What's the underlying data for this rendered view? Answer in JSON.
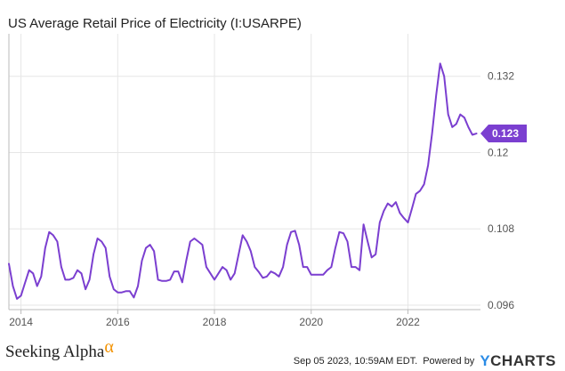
{
  "header": {
    "title": "US Average Retail Price of Electricity (I:USARPE)"
  },
  "footer": {
    "brand": "Seeking Alpha",
    "brand_mark": "α",
    "timestamp": "Sep 05 2023, 10:59AM EDT.",
    "powered_by": "Powered by",
    "provider_y": "Y",
    "provider_rest": "CHARTS"
  },
  "colors": {
    "line": "#7b3fd0",
    "grid": "#e6e6e6",
    "axis": "#bbbbbb"
  },
  "chart_data": {
    "type": "line",
    "title": "US Average Retail Price of Electricity (I:USARPE)",
    "xlabel": "",
    "ylabel": "",
    "xlim": [
      2013.75,
      2023.5
    ],
    "ylim": [
      0.0953,
      0.1384
    ],
    "x_ticks": [
      2014,
      2016,
      2018,
      2020,
      2022
    ],
    "x_tick_labels": [
      "2014",
      "2016",
      "2018",
      "2020",
      "2022"
    ],
    "y_ticks": [
      0.096,
      0.108,
      0.12,
      0.132
    ],
    "y_tick_labels": [
      "0.096",
      "0.108",
      "0.12",
      "0.132"
    ],
    "last_value_label": "0.123",
    "series": [
      {
        "name": "USARPE",
        "x": [
          2013.75,
          2013.833,
          2013.917,
          2014.0,
          2014.083,
          2014.167,
          2014.25,
          2014.333,
          2014.417,
          2014.5,
          2014.583,
          2014.667,
          2014.75,
          2014.833,
          2014.917,
          2015.0,
          2015.083,
          2015.167,
          2015.25,
          2015.333,
          2015.417,
          2015.5,
          2015.583,
          2015.667,
          2015.75,
          2015.833,
          2015.917,
          2016.0,
          2016.083,
          2016.167,
          2016.25,
          2016.333,
          2016.417,
          2016.5,
          2016.583,
          2016.667,
          2016.75,
          2016.833,
          2016.917,
          2017.0,
          2017.083,
          2017.167,
          2017.25,
          2017.333,
          2017.417,
          2017.5,
          2017.583,
          2017.667,
          2017.75,
          2017.833,
          2017.917,
          2018.0,
          2018.083,
          2018.167,
          2018.25,
          2018.333,
          2018.417,
          2018.5,
          2018.583,
          2018.667,
          2018.75,
          2018.833,
          2018.917,
          2019.0,
          2019.083,
          2019.167,
          2019.25,
          2019.333,
          2019.417,
          2019.5,
          2019.583,
          2019.667,
          2019.75,
          2019.833,
          2019.917,
          2020.0,
          2020.083,
          2020.167,
          2020.25,
          2020.333,
          2020.417,
          2020.5,
          2020.583,
          2020.667,
          2020.75,
          2020.833,
          2020.917,
          2021.0,
          2021.083,
          2021.167,
          2021.25,
          2021.333,
          2021.417,
          2021.5,
          2021.583,
          2021.667,
          2021.75,
          2021.833,
          2021.917,
          2022.0,
          2022.083,
          2022.167,
          2022.25,
          2022.333,
          2022.417,
          2022.5,
          2022.583,
          2022.667,
          2022.75,
          2022.833,
          2022.917,
          2023.0,
          2023.083,
          2023.167,
          2023.25,
          2023.333,
          2023.417
        ],
        "values": [
          0.1025,
          0.099,
          0.097,
          0.0975,
          0.0995,
          0.1015,
          0.101,
          0.099,
          0.1005,
          0.105,
          0.1075,
          0.107,
          0.106,
          0.102,
          0.1,
          0.1,
          0.1003,
          0.1015,
          0.101,
          0.0985,
          0.1,
          0.104,
          0.1065,
          0.106,
          0.105,
          0.1005,
          0.0985,
          0.098,
          0.098,
          0.0982,
          0.0982,
          0.0972,
          0.099,
          0.103,
          0.105,
          0.1055,
          0.1045,
          0.1,
          0.0998,
          0.0998,
          0.1,
          0.1013,
          0.1013,
          0.0996,
          0.103,
          0.106,
          0.1065,
          0.106,
          0.1055,
          0.102,
          0.101,
          0.1,
          0.101,
          0.102,
          0.1015,
          0.1,
          0.101,
          0.104,
          0.107,
          0.106,
          0.1045,
          0.102,
          0.1012,
          0.1003,
          0.1005,
          0.1013,
          0.101,
          0.1005,
          0.102,
          0.1055,
          0.1075,
          0.1077,
          0.1055,
          0.102,
          0.102,
          0.1008,
          0.1008,
          0.1008,
          0.1008,
          0.1015,
          0.102,
          0.105,
          0.1075,
          0.1073,
          0.106,
          0.102,
          0.102,
          0.1015,
          0.1087,
          0.106,
          0.1035,
          0.104,
          0.109,
          0.1108,
          0.112,
          0.1115,
          0.1122,
          0.1105,
          0.1097,
          0.109,
          0.1112,
          0.1135,
          0.114,
          0.115,
          0.118,
          0.123,
          0.129,
          0.134,
          0.132,
          0.126,
          0.124,
          0.1245,
          0.126,
          0.1255,
          0.124,
          0.1228,
          0.123
        ]
      }
    ]
  }
}
